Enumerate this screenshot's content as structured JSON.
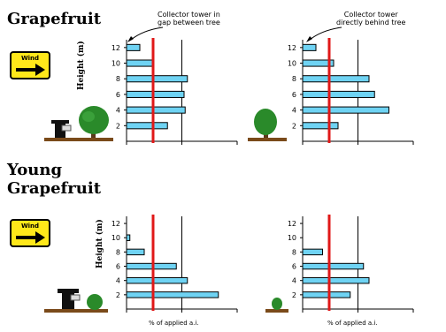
{
  "sections": [
    {
      "title": "Grapefruit",
      "wind_label": "Wind"
    },
    {
      "title_line1": "Young",
      "title_line2": "Grapefruit",
      "wind_label": "Wind"
    }
  ],
  "annotations": {
    "left": {
      "line1": "Collector tower in",
      "line2": "gap between tree"
    },
    "right": {
      "line1": "Collector tower",
      "line2": "directly behind tree"
    }
  },
  "colors": {
    "bar": "#6fd3f3",
    "reference_line": "#e01818",
    "sign": "#ffe81a",
    "tree": "#2a8a2a",
    "ground": "#7a4a1a"
  },
  "chart_data": [
    {
      "type": "bar",
      "orientation": "horizontal",
      "ylabel": "Height (m)",
      "xlabel": "",
      "y_ticks": [
        "2",
        "4",
        "6",
        "8",
        "10",
        "12"
      ],
      "xlim": [
        0,
        1
      ],
      "ylim": [
        0,
        13
      ],
      "x": [
        12,
        10,
        8,
        6,
        4,
        2
      ],
      "values": [
        0.12,
        0.24,
        0.55,
        0.52,
        0.53,
        0.37
      ],
      "reference_line": 0.24,
      "gridline": 0.5
    },
    {
      "type": "bar",
      "orientation": "horizontal",
      "ylabel": "",
      "xlabel": "",
      "y_ticks": [
        "2",
        "4",
        "6",
        "8",
        "10",
        "12"
      ],
      "xlim": [
        0,
        1
      ],
      "ylim": [
        0,
        13
      ],
      "x": [
        12,
        10,
        8,
        6,
        4,
        2
      ],
      "values": [
        0.12,
        0.28,
        0.6,
        0.65,
        0.78,
        0.32
      ],
      "reference_line": 0.24,
      "gridline": 0.5
    },
    {
      "type": "bar",
      "orientation": "horizontal",
      "ylabel": "Height (m)",
      "xlabel": "% of applied a.i.",
      "y_ticks": [
        "2",
        "4",
        "6",
        "8",
        "10",
        "12"
      ],
      "xlim": [
        0,
        1
      ],
      "ylim": [
        0,
        13
      ],
      "x": [
        10,
        8,
        6,
        4,
        2
      ],
      "values": [
        0.03,
        0.16,
        0.45,
        0.55,
        0.83
      ],
      "reference_line": 0.24,
      "gridline": 0.5
    },
    {
      "type": "bar",
      "orientation": "horizontal",
      "ylabel": "",
      "xlabel": "% of applied a.i.",
      "y_ticks": [
        "2",
        "4",
        "6",
        "8",
        "10",
        "12"
      ],
      "xlim": [
        0,
        1
      ],
      "ylim": [
        0,
        13
      ],
      "x": [
        8,
        6,
        4,
        2
      ],
      "values": [
        0.18,
        0.55,
        0.6,
        0.43
      ],
      "reference_line": 0.24,
      "gridline": 0.5
    }
  ]
}
